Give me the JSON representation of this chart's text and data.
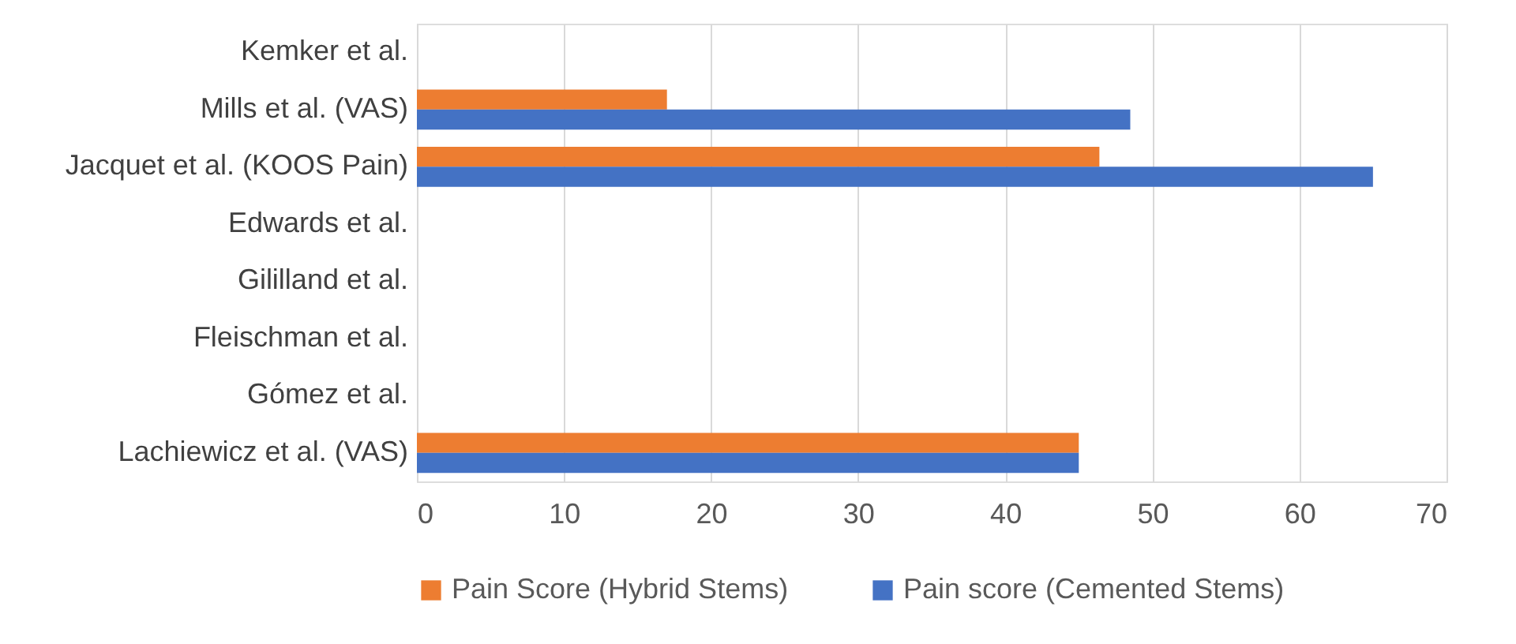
{
  "chart_data": {
    "type": "bar",
    "orientation": "horizontal",
    "categories": [
      "Kemker et al.",
      "Mills et al. (VAS)",
      "Jacquet et al. (KOOS Pain)",
      "Edwards et al.",
      "Gililland et al.",
      "Fleischman et al.",
      "Gómez et al.",
      "Lachiewicz et al. (VAS)"
    ],
    "series": [
      {
        "name": "Pain Score (Hybrid Stems)",
        "color": "#ed7d31",
        "values": [
          null,
          17,
          46.4,
          null,
          null,
          null,
          null,
          45
        ]
      },
      {
        "name": "Pain score (Cemented Stems)",
        "color": "#4472c4",
        "values": [
          null,
          48.5,
          65,
          null,
          null,
          null,
          null,
          45
        ]
      }
    ],
    "xlim": [
      0,
      70
    ],
    "xticks": [
      0,
      10,
      20,
      30,
      40,
      50,
      60,
      70
    ],
    "grid": "x",
    "legend": "bottom"
  }
}
